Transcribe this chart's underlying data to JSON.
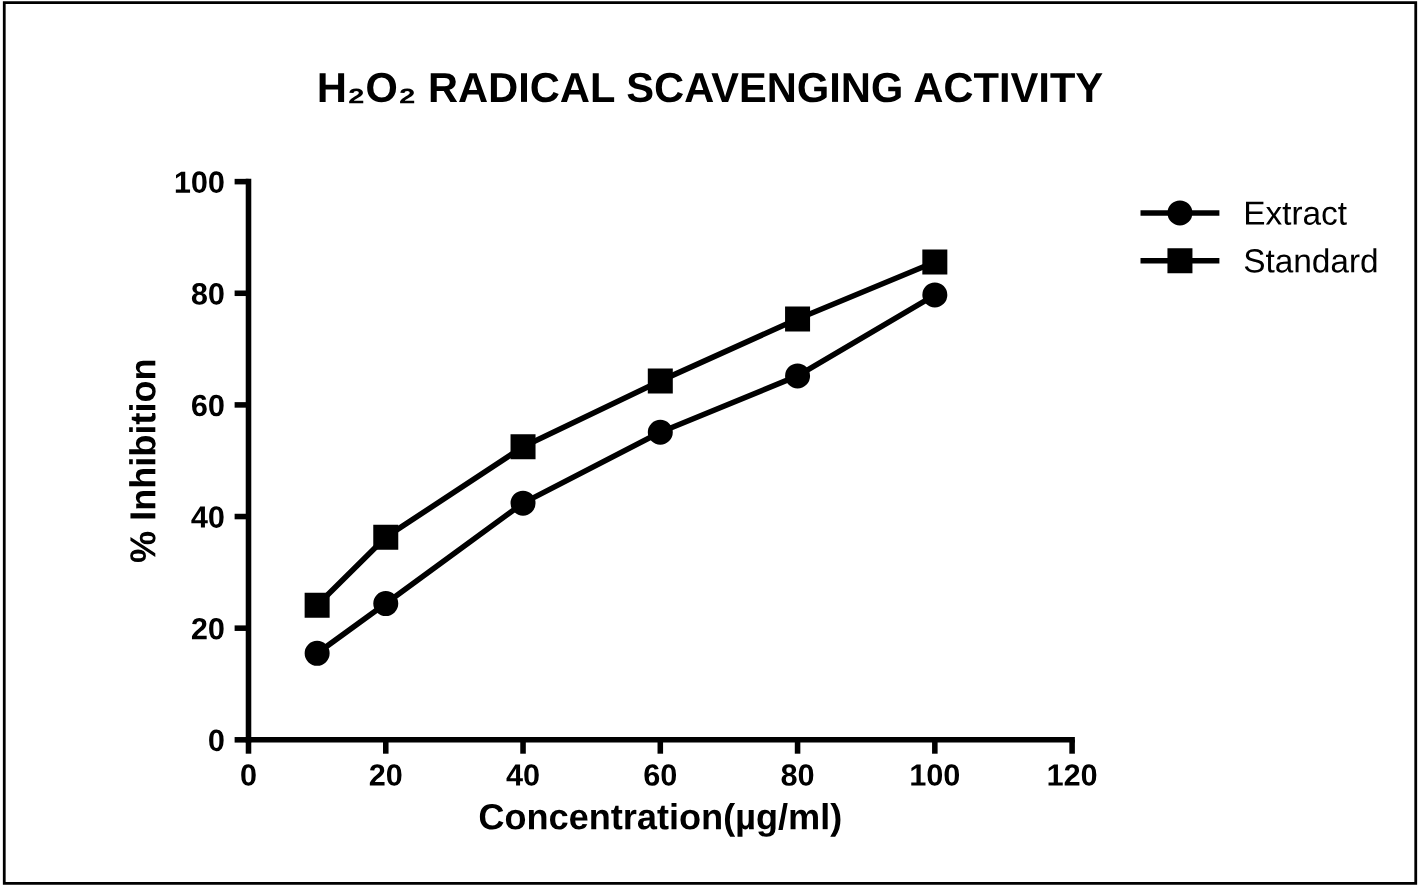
{
  "chart_data": {
    "type": "line",
    "title": "H₂O₂ RADICAL SCAVENGING ACTIVITY",
    "xlabel": "Concentration(µg/ml)",
    "ylabel": "% Inhibition",
    "x": [
      10,
      20,
      40,
      60,
      80,
      100
    ],
    "series": [
      {
        "name": "Extract",
        "color": "#000000",
        "marker": "circle",
        "values": [
          15.5,
          24.4,
          42.4,
          55.1,
          65.2,
          79.7
        ]
      },
      {
        "name": "Standard",
        "color": "#000000",
        "marker": "square",
        "values": [
          24.1,
          36.3,
          52.5,
          64.3,
          75.4,
          85.6
        ]
      }
    ],
    "xlim": [
      0,
      120
    ],
    "xticks": [
      0,
      20,
      40,
      60,
      80,
      100,
      120
    ],
    "ylim": [
      0,
      100
    ],
    "yticks": [
      0,
      20,
      40,
      60,
      80,
      100
    ],
    "grid": false,
    "legend": "top right",
    "line_style": "solid"
  }
}
